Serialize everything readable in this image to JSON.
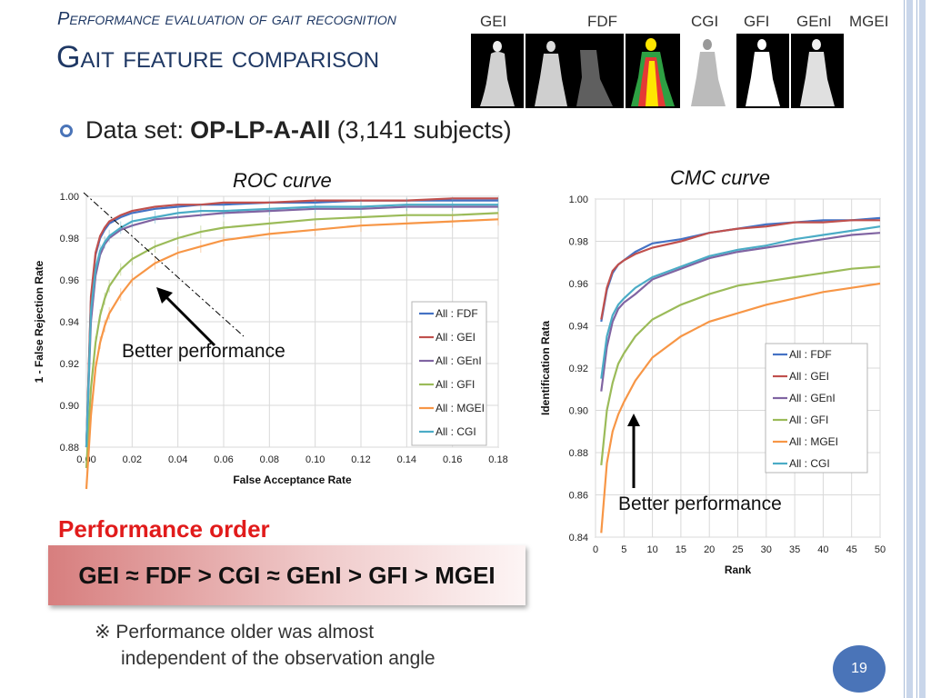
{
  "slide": {
    "kicker": "Performance evaluation of gait recognition",
    "title": "Gait feature comparison",
    "bullet_prefix": "Data set:",
    "bullet_bold": "OP-LP-A-All",
    "bullet_suffix": "(3,141 subjects)",
    "perf_heading": "Performance order",
    "perf_order": "GEI ≈ FDF > CGI ≈ GEnI > GFI > MGEI",
    "note_line1": "※ Performance older was almost",
    "note_line2": "independent of the observation angle",
    "page_number": "19",
    "colors": {
      "title": "#1f3864",
      "accent": "#4a74b8",
      "heading_red": "#e11b1b"
    }
  },
  "feature_strip": {
    "labels": [
      "GEI",
      "FDF",
      "CGI",
      "GFI",
      "GEnI",
      "MGEI"
    ]
  },
  "chart_data": [
    {
      "type": "line",
      "title": "ROC curve",
      "xlabel": "False Acceptance Rate",
      "ylabel": "1 - False Rejection Rate",
      "xlim": [
        0.0,
        0.18
      ],
      "ylim": [
        0.88,
        1.0
      ],
      "xticks": [
        "0.00",
        "0.02",
        "0.04",
        "0.06",
        "0.08",
        "0.10",
        "0.12",
        "0.14",
        "0.16",
        "0.18"
      ],
      "yticks": [
        "0.88",
        "0.90",
        "0.92",
        "0.94",
        "0.96",
        "0.98",
        "1.00"
      ],
      "grid": true,
      "legend": "right",
      "annotation": "Better performance",
      "x": [
        0.0,
        0.002,
        0.004,
        0.006,
        0.008,
        0.01,
        0.015,
        0.02,
        0.03,
        0.04,
        0.05,
        0.06,
        0.08,
        0.1,
        0.12,
        0.14,
        0.16,
        0.18
      ],
      "series": [
        {
          "name": "All : FDF",
          "color": "#4472c4",
          "values": [
            0.88,
            0.95,
            0.972,
            0.98,
            0.984,
            0.987,
            0.99,
            0.992,
            0.994,
            0.995,
            0.996,
            0.996,
            0.997,
            0.997,
            0.998,
            0.998,
            0.998,
            0.998
          ]
        },
        {
          "name": "All : GEI",
          "color": "#c0504d",
          "values": [
            0.88,
            0.952,
            0.973,
            0.981,
            0.985,
            0.988,
            0.991,
            0.993,
            0.995,
            0.996,
            0.996,
            0.997,
            0.997,
            0.998,
            0.998,
            0.998,
            0.999,
            0.999
          ]
        },
        {
          "name": "All : GEnI",
          "color": "#8064a2",
          "values": [
            0.88,
            0.94,
            0.962,
            0.972,
            0.977,
            0.98,
            0.984,
            0.986,
            0.989,
            0.99,
            0.991,
            0.992,
            0.993,
            0.994,
            0.994,
            0.995,
            0.995,
            0.995
          ]
        },
        {
          "name": "All : GFI",
          "color": "#9bbb59",
          "values": [
            0.87,
            0.908,
            0.93,
            0.943,
            0.951,
            0.957,
            0.965,
            0.97,
            0.976,
            0.98,
            0.983,
            0.985,
            0.987,
            0.989,
            0.99,
            0.991,
            0.991,
            0.992
          ]
        },
        {
          "name": "All : MGEI",
          "color": "#f79646",
          "values": [
            0.86,
            0.895,
            0.918,
            0.93,
            0.938,
            0.944,
            0.953,
            0.96,
            0.968,
            0.973,
            0.976,
            0.979,
            0.982,
            0.984,
            0.986,
            0.987,
            0.988,
            0.989
          ]
        },
        {
          "name": "All : CGI",
          "color": "#4bacc6",
          "values": [
            0.88,
            0.945,
            0.965,
            0.974,
            0.978,
            0.981,
            0.985,
            0.988,
            0.99,
            0.992,
            0.993,
            0.993,
            0.994,
            0.995,
            0.995,
            0.996,
            0.996,
            0.996
          ]
        }
      ]
    },
    {
      "type": "line",
      "title": "CMC curve",
      "xlabel": "Rank",
      "ylabel": "Identification Rata",
      "xlim": [
        0,
        50
      ],
      "ylim": [
        0.84,
        1.0
      ],
      "xticks": [
        "0",
        "5",
        "10",
        "15",
        "20",
        "25",
        "30",
        "35",
        "40",
        "45",
        "50"
      ],
      "yticks": [
        "0.84",
        "0.86",
        "0.88",
        "0.90",
        "0.92",
        "0.94",
        "0.96",
        "0.98",
        "1.00"
      ],
      "grid": true,
      "legend": "right",
      "annotation": "Better performance",
      "x": [
        1,
        2,
        3,
        4,
        5,
        7,
        10,
        15,
        20,
        25,
        30,
        35,
        40,
        45,
        50
      ],
      "series": [
        {
          "name": "All : FDF",
          "color": "#4472c4",
          "values": [
            0.942,
            0.957,
            0.965,
            0.969,
            0.971,
            0.975,
            0.979,
            0.981,
            0.984,
            0.986,
            0.988,
            0.989,
            0.99,
            0.99,
            0.991
          ]
        },
        {
          "name": "All : GEI",
          "color": "#c0504d",
          "values": [
            0.943,
            0.958,
            0.966,
            0.969,
            0.971,
            0.974,
            0.977,
            0.98,
            0.984,
            0.986,
            0.987,
            0.989,
            0.989,
            0.99,
            0.99
          ]
        },
        {
          "name": "All : GEnI",
          "color": "#8064a2",
          "values": [
            0.909,
            0.93,
            0.942,
            0.948,
            0.951,
            0.955,
            0.962,
            0.967,
            0.972,
            0.975,
            0.977,
            0.979,
            0.981,
            0.983,
            0.984
          ]
        },
        {
          "name": "All : GFI",
          "color": "#9bbb59",
          "values": [
            0.874,
            0.9,
            0.913,
            0.922,
            0.927,
            0.935,
            0.943,
            0.95,
            0.955,
            0.959,
            0.961,
            0.963,
            0.965,
            0.967,
            0.968
          ]
        },
        {
          "name": "All : MGEI",
          "color": "#f79646",
          "values": [
            0.842,
            0.875,
            0.89,
            0.898,
            0.904,
            0.914,
            0.925,
            0.935,
            0.942,
            0.946,
            0.95,
            0.953,
            0.956,
            0.958,
            0.96
          ]
        },
        {
          "name": "All : CGI",
          "color": "#4bacc6",
          "values": [
            0.915,
            0.935,
            0.945,
            0.95,
            0.953,
            0.958,
            0.963,
            0.968,
            0.973,
            0.976,
            0.978,
            0.981,
            0.983,
            0.985,
            0.987
          ]
        }
      ]
    }
  ]
}
